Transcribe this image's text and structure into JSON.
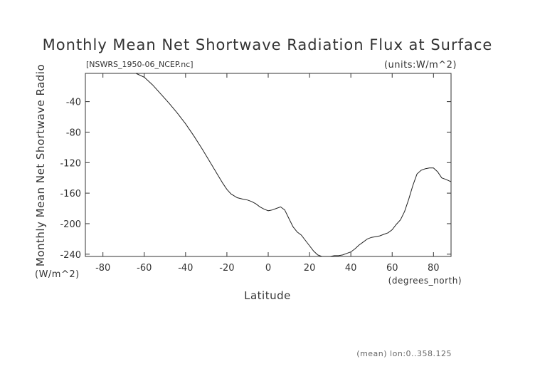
{
  "chart_data": {
    "type": "line",
    "title": "Monthly Mean Net Shortwave Radiation Flux at Surface",
    "subtitle": "[NSWRS_1950-06_NCEP.nc]",
    "units_label": "(units:W/m^2)",
    "xlabel": "Latitude",
    "x_unit_label": "(degrees_north)",
    "ylabel": "Monthly Mean Net Shortwave Radio",
    "y_unit_label": "(W/m^2)",
    "footnote": "(mean) lon:0..358.125",
    "xlim": [
      -88.5,
      88.5
    ],
    "ylim": [
      -243,
      -3
    ],
    "xticks": [
      -80,
      -60,
      -40,
      -20,
      0,
      20,
      40,
      60,
      80
    ],
    "yticks": [
      -40,
      -80,
      -120,
      -160,
      -200,
      -240
    ],
    "grid": false,
    "series": [
      {
        "x": [
          -64,
          -60,
          -56,
          -52,
          -48,
          -44,
          -40,
          -36,
          -32,
          -28,
          -24,
          -22,
          -20,
          -18,
          -15,
          -12,
          -10,
          -8,
          -6,
          -4,
          -2,
          0,
          2,
          4,
          6,
          8,
          10,
          12,
          14,
          16,
          18,
          20,
          22,
          24,
          26,
          28,
          30,
          32,
          34,
          36,
          38,
          40,
          42,
          44,
          46,
          48,
          50,
          52,
          54,
          56,
          58,
          60,
          62,
          64,
          66,
          68,
          70,
          72,
          74,
          76,
          78,
          80,
          82,
          84,
          86,
          88.5
        ],
        "values": [
          -3,
          -8,
          -18,
          -30,
          -42,
          -55,
          -69,
          -85,
          -102,
          -120,
          -138,
          -147,
          -155,
          -161,
          -166,
          -168,
          -169,
          -171,
          -174,
          -178,
          -181,
          -183,
          -182,
          -180,
          -178,
          -182,
          -193,
          -204,
          -211,
          -215,
          -222,
          -229,
          -236,
          -241,
          -243,
          -243,
          -243,
          -242,
          -242,
          -241,
          -239,
          -237,
          -233,
          -228,
          -224,
          -220,
          -218,
          -217,
          -216,
          -214,
          -212,
          -208,
          -201,
          -195,
          -184,
          -168,
          -150,
          -135,
          -130,
          -128,
          -127,
          -127,
          -132,
          -140,
          -142,
          -145
        ]
      }
    ]
  }
}
